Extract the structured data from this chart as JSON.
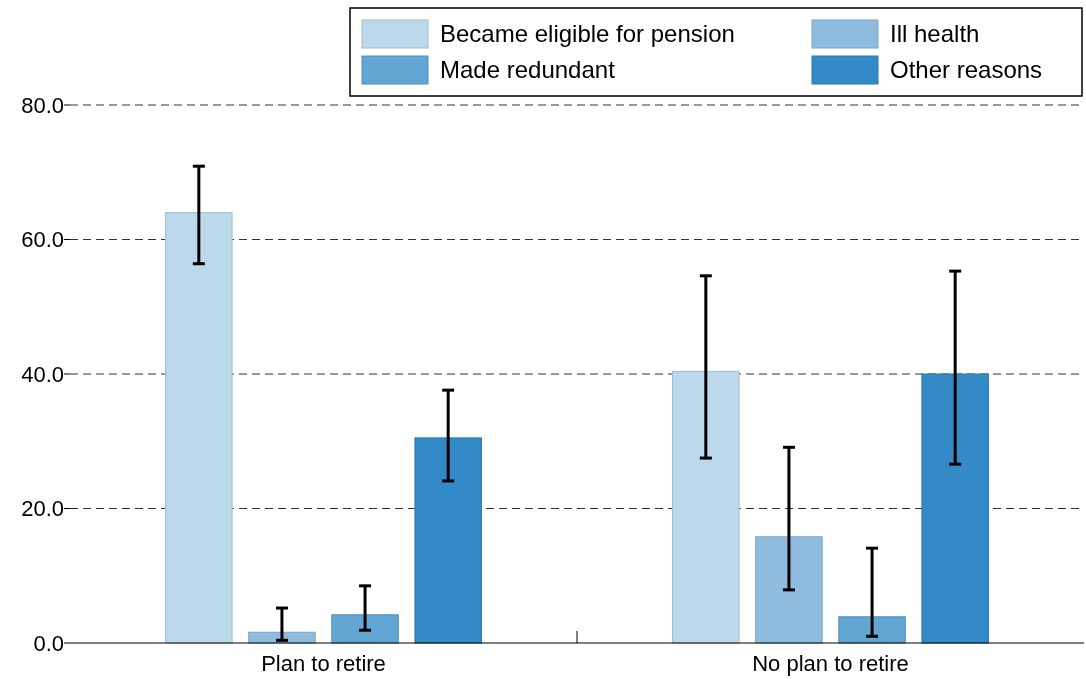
{
  "chart_data": {
    "type": "bar",
    "categories": [
      "Plan to retire",
      "No plan to retire"
    ],
    "series": [
      {
        "name": "Became eligible for pension",
        "color": "#bcd9ec",
        "values": [
          64.0,
          40.4
        ],
        "errors": [
          [
            56.4,
            70.9
          ],
          [
            27.5,
            54.6
          ]
        ]
      },
      {
        "name": "Ill health",
        "color": "#8fbcde",
        "values": [
          1.6,
          15.8
        ],
        "errors": [
          [
            0.4,
            5.2
          ],
          [
            7.9,
            29.1
          ]
        ]
      },
      {
        "name": "Made redundant",
        "color": "#62a6d3",
        "values": [
          4.2,
          3.9
        ],
        "errors": [
          [
            1.9,
            8.5
          ],
          [
            1.0,
            14.1
          ]
        ]
      },
      {
        "name": "Other reasons",
        "color": "#348ac7",
        "values": [
          30.5,
          40.0
        ],
        "errors": [
          [
            24.1,
            37.6
          ],
          [
            26.6,
            55.3
          ]
        ]
      }
    ],
    "ylim": [
      0,
      80
    ],
    "yticks": [
      {
        "value": 0,
        "label": "0.0"
      },
      {
        "value": 20,
        "label": "20.0"
      },
      {
        "value": 40,
        "label": "40.0"
      },
      {
        "value": 60,
        "label": "60.0"
      },
      {
        "value": 80,
        "label": "80.0"
      }
    ],
    "grid": "y",
    "legend": "top right"
  }
}
